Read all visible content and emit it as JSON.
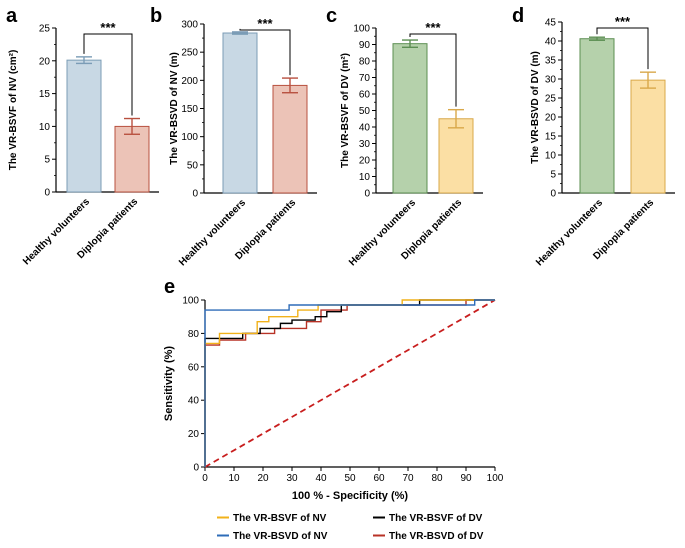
{
  "colors": {
    "blue_fill": "#c8d8e4",
    "blue_edge": "#7b9cb6",
    "red_fill": "#ecc3b7",
    "red_edge": "#b8503f",
    "green_fill": "#b5d1ab",
    "green_edge": "#5c8f52",
    "yellow_fill": "#fbdfa4",
    "yellow_edge": "#d9a84a",
    "roc_yellow": "#f2b21a",
    "roc_black": "#000000",
    "roc_blue": "#2e6cb8",
    "roc_red": "#b83226",
    "diag_red": "#c81e1e",
    "axis": "#000000"
  },
  "significance": "***",
  "chart_data": [
    {
      "panel": "a",
      "type": "bar",
      "ylabel": "The VR-BSVF of NV (cm²)",
      "ylim": [
        0,
        25
      ],
      "yticks": [
        0,
        5,
        10,
        15,
        20,
        25
      ],
      "categories": [
        "Healthy volunteers",
        "Diplopia patients"
      ],
      "values": [
        20.1,
        10.0
      ],
      "errors": [
        0.5,
        1.2
      ],
      "fills": [
        "blue_fill",
        "red_fill"
      ],
      "edges": [
        "blue_edge",
        "red_edge"
      ]
    },
    {
      "panel": "b",
      "type": "bar",
      "ylabel": "The VR-BSVD of NV (m)",
      "ylim": [
        0,
        300
      ],
      "yticks": [
        0,
        50,
        100,
        150,
        200,
        250,
        300
      ],
      "categories": [
        "Healthy volunteers",
        "Diplopia patients"
      ],
      "values": [
        284,
        191
      ],
      "errors": [
        2,
        13
      ],
      "fills": [
        "blue_fill",
        "red_fill"
      ],
      "edges": [
        "blue_edge",
        "red_edge"
      ]
    },
    {
      "panel": "c",
      "type": "bar",
      "ylabel": "The VR-BSVF of DV (m²)",
      "ylim": [
        0,
        100
      ],
      "yticks": [
        0,
        10,
        20,
        30,
        40,
        50,
        60,
        70,
        80,
        90,
        100
      ],
      "categories": [
        "Healthy volunteers",
        "Diplopia patients"
      ],
      "values": [
        90.5,
        45.0
      ],
      "errors": [
        2.2,
        5.5
      ],
      "fills": [
        "green_fill",
        "yellow_fill"
      ],
      "edges": [
        "green_edge",
        "yellow_edge"
      ]
    },
    {
      "panel": "d",
      "type": "bar",
      "ylabel": "The VR-BSVD of DV (m)",
      "ylim": [
        0,
        45
      ],
      "yticks": [
        0,
        5,
        10,
        15,
        20,
        25,
        30,
        35,
        40,
        45
      ],
      "categories": [
        "Healthy volunteers",
        "Diplopia patients"
      ],
      "values": [
        40.6,
        29.7
      ],
      "errors": [
        0.4,
        2.1
      ],
      "fills": [
        "green_fill",
        "yellow_fill"
      ],
      "edges": [
        "green_edge",
        "yellow_edge"
      ]
    },
    {
      "panel": "e",
      "type": "line",
      "xlabel": "100 % - Specificity (%)",
      "ylabel": "Sensitivity (%)",
      "xlim": [
        0,
        100
      ],
      "ylim": [
        0,
        100
      ],
      "xticks": [
        0,
        10,
        20,
        30,
        40,
        50,
        60,
        70,
        80,
        90,
        100
      ],
      "yticks": [
        0,
        20,
        40,
        60,
        80,
        100
      ],
      "series": [
        {
          "name": "The VR-BSVF of NV",
          "color": "roc_yellow",
          "x": [
            0,
            0,
            5,
            5,
            18,
            18,
            22,
            22,
            32,
            32,
            39,
            39,
            48,
            48,
            68,
            68,
            90,
            90,
            100
          ],
          "y": [
            0,
            74,
            74,
            80,
            80,
            87,
            87,
            90,
            90,
            94,
            94,
            97,
            97,
            97,
            97,
            100,
            100,
            100,
            100
          ]
        },
        {
          "name": "The VR-BSVF of DV",
          "color": "roc_black",
          "x": [
            0,
            0,
            13,
            13,
            19,
            19,
            26,
            26,
            30,
            30,
            38,
            38,
            42,
            42,
            47,
            47,
            74,
            74,
            100
          ],
          "y": [
            0,
            77,
            77,
            80,
            80,
            83,
            83,
            86,
            86,
            88,
            88,
            90,
            90,
            93,
            93,
            97,
            97,
            100,
            100
          ]
        },
        {
          "name": "The VR-BSVD of NV",
          "color": "roc_blue",
          "x": [
            0,
            0,
            29,
            29,
            93,
            93,
            100
          ],
          "y": [
            0,
            94,
            94,
            97,
            97,
            100,
            100
          ]
        },
        {
          "name": "The VR-BSVD of DV",
          "color": "roc_red",
          "x": [
            0,
            0,
            5,
            5,
            14,
            14,
            24,
            24,
            35,
            35,
            40,
            40,
            49,
            49,
            90,
            90,
            100
          ],
          "y": [
            0,
            73,
            73,
            76,
            76,
            80,
            80,
            83,
            83,
            87,
            87,
            94,
            94,
            97,
            97,
            100,
            100
          ]
        },
        {
          "name": "reference",
          "color": "diag_red",
          "dashed": true,
          "x": [
            0,
            100
          ],
          "y": [
            0,
            100
          ]
        }
      ],
      "legend": {
        "placement": "bottom",
        "entries": [
          {
            "label": "The VR-BSVF of NV",
            "color": "roc_yellow"
          },
          {
            "label": "The VR-BSVF of DV",
            "color": "roc_black"
          },
          {
            "label": "The VR-BSVD of NV",
            "color": "roc_blue"
          },
          {
            "label": "The VR-BSVD of DV",
            "color": "roc_red"
          }
        ]
      }
    }
  ]
}
